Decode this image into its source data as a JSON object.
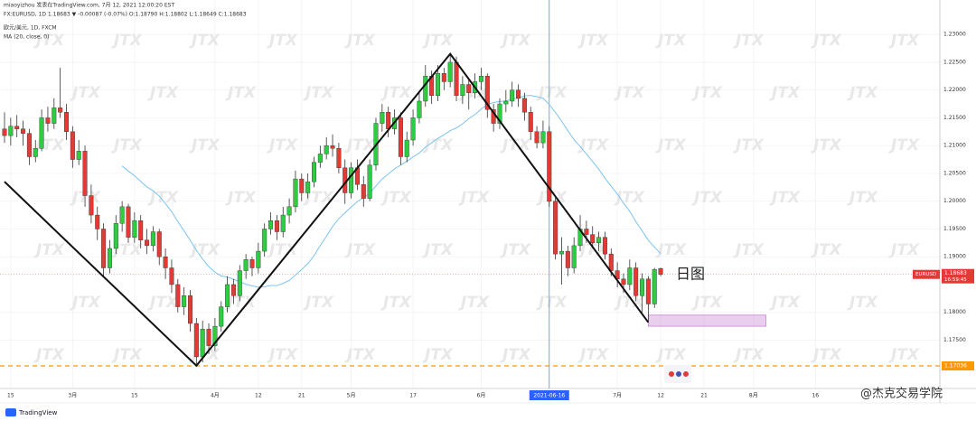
{
  "chart_data": {
    "type": "candlestick",
    "header_lines": [
      "miaoyizhou 发表在TradingView.com, 7月 12, 2021 12:00:20 EST",
      "FX:EURUSD, 1D 1.18683 ▼ -0.00087 (-0.07%) O:1.18790 H:1.18802 L:1.18649 C:1.18683",
      "欧元/美元, 1D, FXCM",
      "MA (20, close, 0)"
    ],
    "annotation": "日图",
    "watermark": "JTX",
    "brand": "TradingView",
    "credit": "@杰克交易学院",
    "up_color": "#2ecc40",
    "down_color": "#e53935",
    "ma": {
      "period": 20,
      "color": "#7cc4ee"
    },
    "ylim": [
      1.1663,
      1.2362
    ],
    "yticks": [
      {
        "value": 1.23,
        "label": "1.23000"
      },
      {
        "value": 1.225,
        "label": "1.22500"
      },
      {
        "value": 1.22,
        "label": "1.22000"
      },
      {
        "value": 1.215,
        "label": "1.21500"
      },
      {
        "value": 1.21,
        "label": "1.21000"
      },
      {
        "value": 1.205,
        "label": "1.20500"
      },
      {
        "value": 1.2,
        "label": "1.20000"
      },
      {
        "value": 1.195,
        "label": "1.19500"
      },
      {
        "value": 1.19,
        "label": "1.19000"
      },
      {
        "value": 1.18,
        "label": "1.18000"
      },
      {
        "value": 1.175,
        "label": "1.17500"
      }
    ],
    "xlim": [
      -0.73,
      151.1
    ],
    "xticks": [
      {
        "value": 1,
        "label": "15"
      },
      {
        "value": 11,
        "label": "3月"
      },
      {
        "value": 21,
        "label": "15"
      },
      {
        "value": 34,
        "label": "4月"
      },
      {
        "value": 41,
        "label": "12"
      },
      {
        "value": 48,
        "label": "21"
      },
      {
        "value": 56,
        "label": "5月"
      },
      {
        "value": 66,
        "label": "17"
      },
      {
        "value": 77,
        "label": "6月"
      },
      {
        "value": 99,
        "label": "7月"
      },
      {
        "value": 106,
        "label": "12"
      },
      {
        "value": 113,
        "label": "21"
      },
      {
        "value": 121,
        "label": "8月"
      },
      {
        "value": 131,
        "label": "16"
      }
    ],
    "crosshair": {
      "value": 88,
      "label": "2021-06-16"
    },
    "last_price": {
      "symbol": "EURUSD",
      "value": 1.18683,
      "countdown": "16:59:45"
    },
    "support_level": 1.17036,
    "trendline": {
      "x": [
        0,
        31,
        72,
        104
      ],
      "y": [
        1.2035,
        1.1704,
        1.2265,
        1.1782
      ]
    },
    "zone": {
      "x": [
        104,
        123
      ],
      "y": [
        1.1775,
        1.1795
      ]
    },
    "ohlc": [
      [
        1.213,
        1.216,
        1.2105,
        1.2118
      ],
      [
        1.2118,
        1.215,
        1.21,
        1.2135
      ],
      [
        1.2135,
        1.2155,
        1.2115,
        1.213
      ],
      [
        1.213,
        1.2145,
        1.21,
        1.2122
      ],
      [
        1.2122,
        1.213,
        1.2065,
        1.208
      ],
      [
        1.208,
        1.211,
        1.207,
        1.2095
      ],
      [
        1.2095,
        1.2165,
        1.209,
        1.215
      ],
      [
        1.215,
        1.217,
        1.2125,
        1.214
      ],
      [
        1.214,
        1.2185,
        1.213,
        1.2168
      ],
      [
        1.2168,
        1.224,
        1.215,
        1.216
      ],
      [
        1.216,
        1.2175,
        1.211,
        1.2125
      ],
      [
        1.2125,
        1.2135,
        1.206,
        1.2075
      ],
      [
        1.2075,
        1.211,
        1.2065,
        1.209
      ],
      [
        1.209,
        1.21,
        1.199,
        1.201
      ],
      [
        1.201,
        1.203,
        1.196,
        1.1975
      ],
      [
        1.1975,
        1.199,
        1.193,
        1.195
      ],
      [
        1.195,
        1.196,
        1.1865,
        1.188
      ],
      [
        1.188,
        1.193,
        1.187,
        1.1915
      ],
      [
        1.1915,
        1.1975,
        1.1905,
        1.196
      ],
      [
        1.196,
        1.2,
        1.1945,
        1.199
      ],
      [
        1.199,
        1.1995,
        1.1925,
        1.1935
      ],
      [
        1.1935,
        1.198,
        1.1925,
        1.1965
      ],
      [
        1.1965,
        1.1975,
        1.1915,
        1.193
      ],
      [
        1.193,
        1.195,
        1.1905,
        1.192
      ],
      [
        1.192,
        1.1955,
        1.191,
        1.1945
      ],
      [
        1.1945,
        1.195,
        1.1885,
        1.19
      ],
      [
        1.19,
        1.1915,
        1.186,
        1.188
      ],
      [
        1.188,
        1.1895,
        1.1835,
        1.185
      ],
      [
        1.185,
        1.186,
        1.18,
        1.181
      ],
      [
        1.181,
        1.1845,
        1.1795,
        1.183
      ],
      [
        1.183,
        1.184,
        1.1765,
        1.178
      ],
      [
        1.178,
        1.179,
        1.1704,
        1.172
      ],
      [
        1.172,
        1.1785,
        1.171,
        1.177
      ],
      [
        1.177,
        1.178,
        1.1725,
        1.174
      ],
      [
        1.174,
        1.179,
        1.173,
        1.1775
      ],
      [
        1.1775,
        1.182,
        1.1765,
        1.181
      ],
      [
        1.181,
        1.1865,
        1.18,
        1.185
      ],
      [
        1.185,
        1.186,
        1.1815,
        1.183
      ],
      [
        1.183,
        1.1885,
        1.182,
        1.1875
      ],
      [
        1.1875,
        1.1905,
        1.186,
        1.1895
      ],
      [
        1.1895,
        1.19,
        1.1865,
        1.188
      ],
      [
        1.188,
        1.1925,
        1.187,
        1.191
      ],
      [
        1.191,
        1.196,
        1.19,
        1.195
      ],
      [
        1.195,
        1.198,
        1.194,
        1.1965
      ],
      [
        1.1965,
        1.1975,
        1.193,
        1.1945
      ],
      [
        1.1945,
        1.199,
        1.1935,
        1.1975
      ],
      [
        1.1975,
        1.2005,
        1.196,
        1.199
      ],
      [
        1.199,
        1.2055,
        1.198,
        1.204
      ],
      [
        1.204,
        1.205,
        1.2,
        1.2015
      ],
      [
        1.2015,
        1.205,
        1.2005,
        1.2035
      ],
      [
        1.2035,
        1.208,
        1.2025,
        1.207
      ],
      [
        1.207,
        1.21,
        1.206,
        1.2085
      ],
      [
        1.2085,
        1.2115,
        1.2075,
        1.21
      ],
      [
        1.21,
        1.212,
        1.208,
        1.2095
      ],
      [
        1.2095,
        1.2105,
        1.205,
        1.206
      ],
      [
        1.206,
        1.2075,
        1.1995,
        1.2015
      ],
      [
        1.2015,
        1.207,
        1.2005,
        1.206
      ],
      [
        1.206,
        1.2075,
        1.202,
        1.203
      ],
      [
        1.203,
        1.2045,
        1.199,
        1.2005
      ],
      [
        1.2005,
        1.2075,
        1.2,
        1.2065
      ],
      [
        1.2065,
        1.215,
        1.2055,
        1.214
      ],
      [
        1.214,
        1.2175,
        1.2125,
        1.216
      ],
      [
        1.216,
        1.217,
        1.2115,
        1.213
      ],
      [
        1.213,
        1.2165,
        1.212,
        1.215
      ],
      [
        1.215,
        1.216,
        1.2065,
        1.208
      ],
      [
        1.208,
        1.2125,
        1.207,
        1.211
      ],
      [
        1.211,
        1.2165,
        1.21,
        1.215
      ],
      [
        1.215,
        1.2195,
        1.214,
        1.218
      ],
      [
        1.218,
        1.2245,
        1.217,
        1.2225
      ],
      [
        1.2225,
        1.2235,
        1.2175,
        1.219
      ],
      [
        1.219,
        1.2245,
        1.218,
        1.223
      ],
      [
        1.223,
        1.224,
        1.22,
        1.2215
      ],
      [
        1.2215,
        1.2265,
        1.2205,
        1.225
      ],
      [
        1.225,
        1.226,
        1.218,
        1.219
      ],
      [
        1.219,
        1.2225,
        1.2175,
        1.221
      ],
      [
        1.221,
        1.222,
        1.2165,
        1.2195
      ],
      [
        1.2195,
        1.223,
        1.2185,
        1.2215
      ],
      [
        1.2215,
        1.224,
        1.22,
        1.2225
      ],
      [
        1.2225,
        1.223,
        1.215,
        1.2165
      ],
      [
        1.2165,
        1.2175,
        1.2125,
        1.214
      ],
      [
        1.214,
        1.2185,
        1.213,
        1.2175
      ],
      [
        1.2175,
        1.22,
        1.216,
        1.218
      ],
      [
        1.218,
        1.2215,
        1.217,
        1.22
      ],
      [
        1.22,
        1.221,
        1.217,
        1.2185
      ],
      [
        1.2185,
        1.2195,
        1.2145,
        1.216
      ],
      [
        1.216,
        1.217,
        1.211,
        1.2125
      ],
      [
        1.2125,
        1.2135,
        1.2095,
        1.2105
      ],
      [
        1.2105,
        1.2145,
        1.2095,
        1.2125
      ],
      [
        1.2125,
        1.2135,
        1.199,
        1.2
      ],
      [
        1.2,
        1.201,
        1.1895,
        1.1905
      ],
      [
        1.1905,
        1.1935,
        1.185,
        1.191
      ],
      [
        1.191,
        1.192,
        1.1865,
        1.188
      ],
      [
        1.188,
        1.1935,
        1.187,
        1.192
      ],
      [
        1.192,
        1.1975,
        1.191,
        1.195
      ],
      [
        1.195,
        1.1965,
        1.1925,
        1.194
      ],
      [
        1.194,
        1.1955,
        1.1915,
        1.1925
      ],
      [
        1.1925,
        1.1945,
        1.191,
        1.1935
      ],
      [
        1.1935,
        1.1945,
        1.1895,
        1.1905
      ],
      [
        1.1905,
        1.1915,
        1.1865,
        1.1875
      ],
      [
        1.1875,
        1.189,
        1.1845,
        1.186
      ],
      [
        1.186,
        1.187,
        1.1835,
        1.185
      ],
      [
        1.185,
        1.1895,
        1.184,
        1.188
      ],
      [
        1.188,
        1.189,
        1.182,
        1.183
      ],
      [
        1.183,
        1.187,
        1.18,
        1.186
      ],
      [
        1.186,
        1.1865,
        1.1782,
        1.1815
      ],
      [
        1.1815,
        1.188,
        1.1808,
        1.1877
      ],
      [
        1.1879,
        1.18802,
        1.18649,
        1.18683
      ]
    ]
  }
}
